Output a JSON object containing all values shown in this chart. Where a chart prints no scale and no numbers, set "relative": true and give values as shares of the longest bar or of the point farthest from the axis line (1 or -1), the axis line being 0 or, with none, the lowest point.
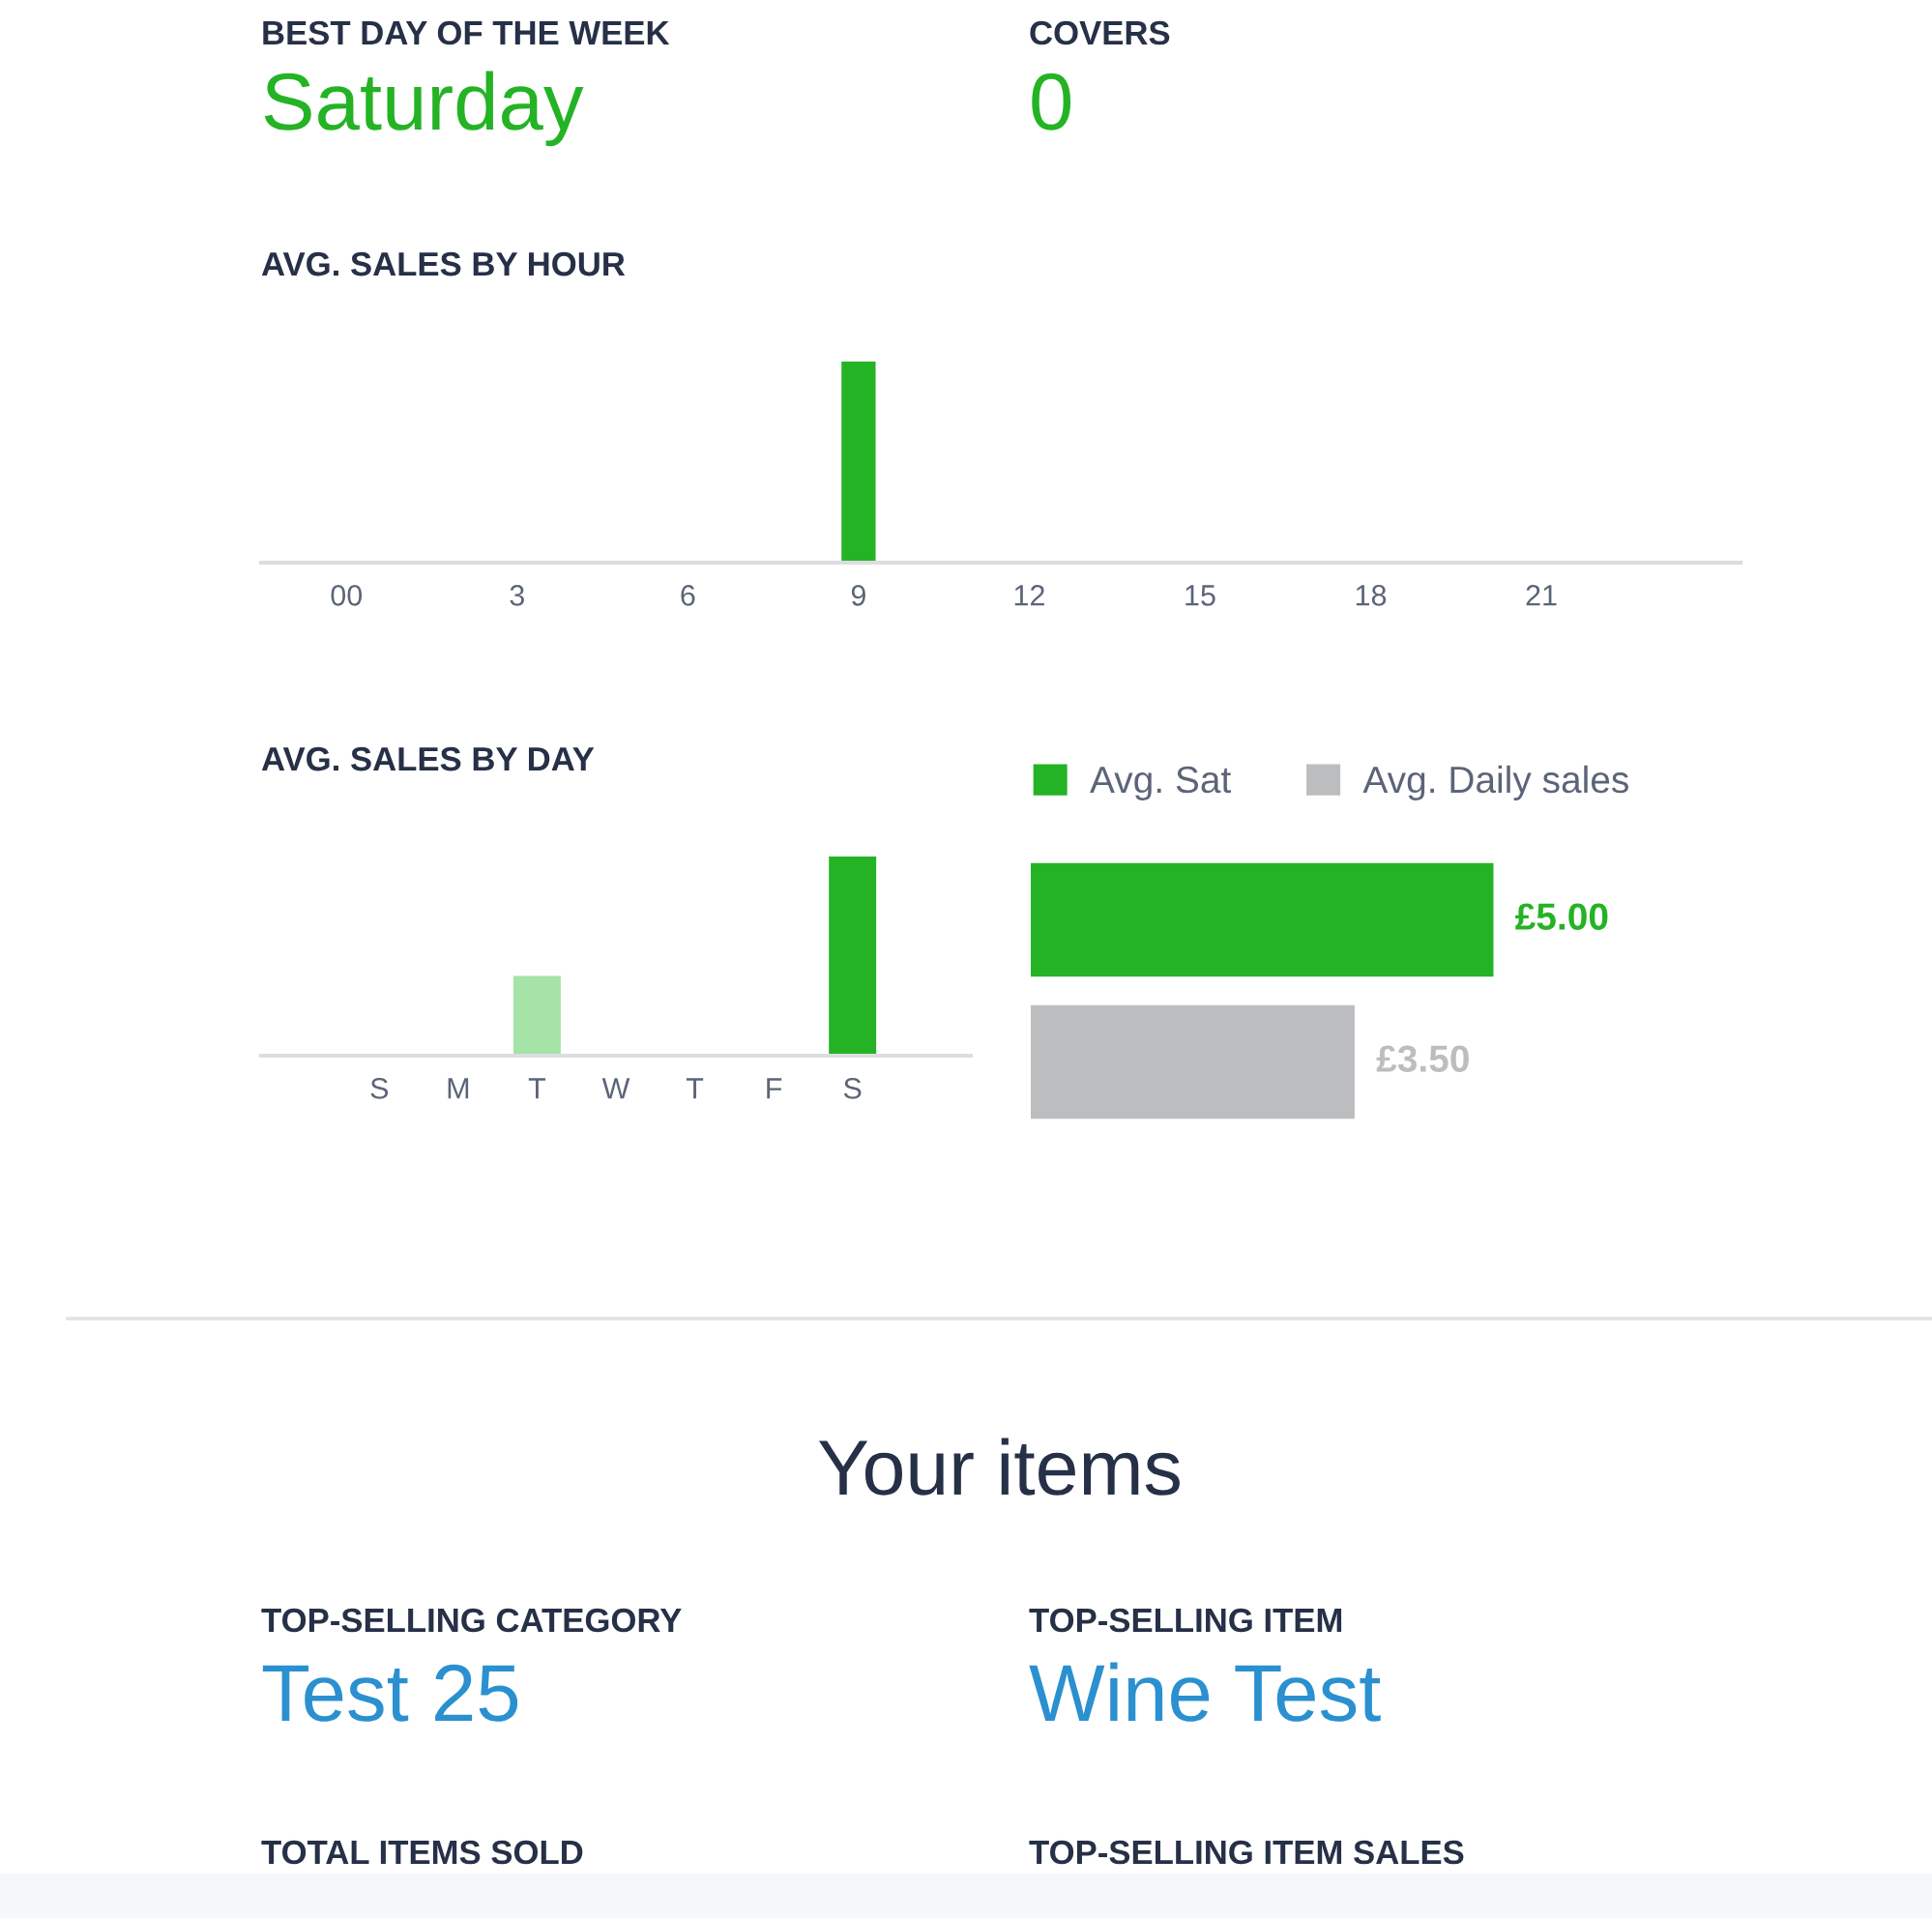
{
  "chart_data": [
    {
      "type": "other",
      "categories": [
        "BEST DAY OF THE WEEK",
        "COVERS"
      ],
      "annotations": [
        "Saturday",
        "0"
      ],
      "color": "#24b324"
    },
    {
      "type": "bar",
      "title": "AVG. SALES BY HOUR",
      "x": [
        9
      ],
      "values": [
        1
      ],
      "color": "#24b324",
      "relative": true,
      "xlim": [
        -1.5,
        24.5
      ],
      "xticks": [
        {
          "value": 0,
          "label": "00"
        },
        3,
        6,
        9,
        12,
        15,
        18,
        21
      ],
      "tick_labels": "x"
    },
    {
      "type": "bar",
      "title": "AVG. SALES BY DAY",
      "categories": [
        "S",
        "M",
        "T",
        "W",
        "T",
        "F",
        "S"
      ],
      "values": [
        0,
        0,
        0.4,
        0,
        0,
        0,
        1
      ],
      "colors": [
        null,
        null,
        "#a6e3a6",
        null,
        null,
        null,
        "#24b324"
      ],
      "relative": true,
      "tick_labels": "x"
    },
    {
      "type": "bar",
      "orientation": "horizontal",
      "categories": [
        null
      ],
      "series": [
        {
          "name": "Avg. Sat",
          "color": "#24b324",
          "values": [
            5.0
          ],
          "value_labels": [
            "£5.00"
          ]
        },
        {
          "name": "Avg. Daily sales",
          "color": "#bcbdbf",
          "values": [
            3.5
          ],
          "value_labels": [
            "£3.50"
          ]
        }
      ],
      "tick_labels": false,
      "legend": "top"
    },
    {
      "type": "other",
      "title": "Your items",
      "categories": [
        "TOP-SELLING CATEGORY",
        "TOP-SELLING ITEM",
        "TOTAL ITEMS SOLD",
        "TOP-SELLING ITEM SALES"
      ],
      "annotations": [
        "Test 25",
        "Wine Test"
      ],
      "color": "#2b90d0"
    }
  ]
}
